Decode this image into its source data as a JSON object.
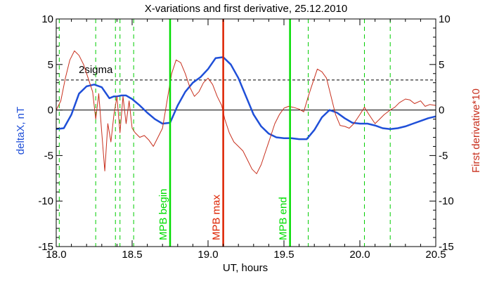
{
  "chart_data": {
    "type": "line",
    "title": "X-variations and first derivative, 25.12.2010",
    "xlabel": "UT, hours",
    "ylabel_left": "deltaX, nT",
    "ylabel_right": "First derivative*10",
    "xlim": [
      18.0,
      20.5
    ],
    "ylim": [
      -15,
      10
    ],
    "x_ticks": [
      "18.0",
      "18.5",
      "19.0",
      "19.5",
      "20.0",
      "20.5"
    ],
    "y_ticks": [
      "10",
      "5",
      "0",
      "-5",
      "-10",
      "-15"
    ],
    "colors": {
      "deltaX": "#1f4fd8",
      "derivative": "#c8301e",
      "marker_green": "#00dd00",
      "marker_red": "#dd2200"
    },
    "series": [
      {
        "name": "deltaX, nT",
        "axis": "left",
        "x": [
          18.0,
          18.05,
          18.1,
          18.15,
          18.2,
          18.25,
          18.3,
          18.35,
          18.38,
          18.4,
          18.43,
          18.46,
          18.5,
          18.55,
          18.6,
          18.65,
          18.7,
          18.75,
          18.8,
          18.85,
          18.9,
          18.95,
          19.0,
          19.05,
          19.1,
          19.15,
          19.2,
          19.25,
          19.3,
          19.35,
          19.4,
          19.45,
          19.5,
          19.55,
          19.6,
          19.65,
          19.7,
          19.75,
          19.8,
          19.85,
          19.9,
          19.95,
          20.0,
          20.05,
          20.1,
          20.15,
          20.2,
          20.25,
          20.3,
          20.35,
          20.4,
          20.45,
          20.5
        ],
        "y": [
          -2.1,
          -2.0,
          -0.5,
          1.8,
          2.6,
          2.8,
          2.5,
          1.3,
          1.5,
          1.5,
          1.6,
          1.6,
          1.2,
          0.5,
          -0.3,
          -1.0,
          -1.5,
          -1.4,
          0.5,
          2.0,
          3.0,
          3.6,
          4.5,
          5.7,
          5.8,
          5.0,
          3.5,
          1.5,
          -0.5,
          -1.8,
          -2.6,
          -3.0,
          -3.1,
          -3.1,
          -3.2,
          -3.2,
          -2.2,
          -0.8,
          0.0,
          -0.3,
          -0.9,
          -1.4,
          -1.5,
          -1.5,
          -1.7,
          -2.0,
          -2.1,
          -2.0,
          -1.8,
          -1.5,
          -1.2,
          -0.9,
          -0.7
        ]
      },
      {
        "name": "First derivative*10",
        "axis": "right",
        "x": [
          18.0,
          18.03,
          18.06,
          18.09,
          18.12,
          18.15,
          18.18,
          18.21,
          18.24,
          18.26,
          18.28,
          18.3,
          18.32,
          18.34,
          18.36,
          18.38,
          18.4,
          18.42,
          18.44,
          18.46,
          18.48,
          18.5,
          18.52,
          18.55,
          18.58,
          18.61,
          18.64,
          18.67,
          18.7,
          18.73,
          18.76,
          18.79,
          18.82,
          18.85,
          18.88,
          18.91,
          18.94,
          18.97,
          19.0,
          19.03,
          19.06,
          19.09,
          19.11,
          19.14,
          19.17,
          19.2,
          19.23,
          19.26,
          19.29,
          19.32,
          19.35,
          19.38,
          19.41,
          19.44,
          19.47,
          19.5,
          19.53,
          19.56,
          19.6,
          19.63,
          19.66,
          19.69,
          19.72,
          19.75,
          19.78,
          19.81,
          19.84,
          19.87,
          19.9,
          19.93,
          19.96,
          20.0,
          20.03,
          20.06,
          20.1,
          20.13,
          20.16,
          20.2,
          20.23,
          20.26,
          20.3,
          20.33,
          20.36,
          20.4,
          20.43,
          20.46,
          20.5
        ],
        "y": [
          0.0,
          1.0,
          3.5,
          5.5,
          6.5,
          6.0,
          5.0,
          3.5,
          2.0,
          -1.0,
          1.8,
          -2.5,
          -6.7,
          -1.5,
          -3.5,
          -0.5,
          1.5,
          -2.5,
          1.5,
          -1.5,
          1.0,
          -2.0,
          -2.5,
          -3.0,
          -2.8,
          -3.3,
          -4.0,
          -3.0,
          -2.0,
          1.0,
          4.0,
          5.5,
          5.2,
          4.0,
          2.5,
          1.5,
          2.0,
          3.0,
          3.5,
          2.8,
          1.5,
          0.5,
          -1.0,
          -2.5,
          -3.5,
          -4.0,
          -4.5,
          -5.5,
          -6.5,
          -7.0,
          -6.0,
          -4.5,
          -3.0,
          -1.5,
          -0.5,
          0.2,
          0.4,
          0.3,
          0.1,
          -0.2,
          1.5,
          3.0,
          4.5,
          4.2,
          3.5,
          1.5,
          -0.5,
          -1.7,
          -1.8,
          -2.0,
          -1.5,
          -0.5,
          0.3,
          -0.5,
          -1.5,
          -1.0,
          -0.5,
          0.0,
          0.3,
          0.8,
          1.2,
          1.1,
          0.7,
          1.0,
          0.4,
          0.6,
          0.5
        ]
      }
    ],
    "reference_lines": [
      {
        "name": "zero",
        "y": 0,
        "style": "solid"
      },
      {
        "name": "2sigma",
        "y": 3.3,
        "style": "dashed"
      }
    ],
    "vertical_markers": [
      {
        "x": 18.75,
        "label": "MPB begin",
        "color": "#00dd00"
      },
      {
        "x": 19.1,
        "label": "MPB max",
        "color": "#dd2200"
      },
      {
        "x": 19.54,
        "label": "MPB end",
        "color": "#00dd00"
      }
    ],
    "dashed_verticals": [
      18.02,
      18.26,
      18.39,
      18.42,
      18.51,
      19.66,
      20.03,
      20.2
    ],
    "annotation": "2sigma",
    "grid": false
  }
}
